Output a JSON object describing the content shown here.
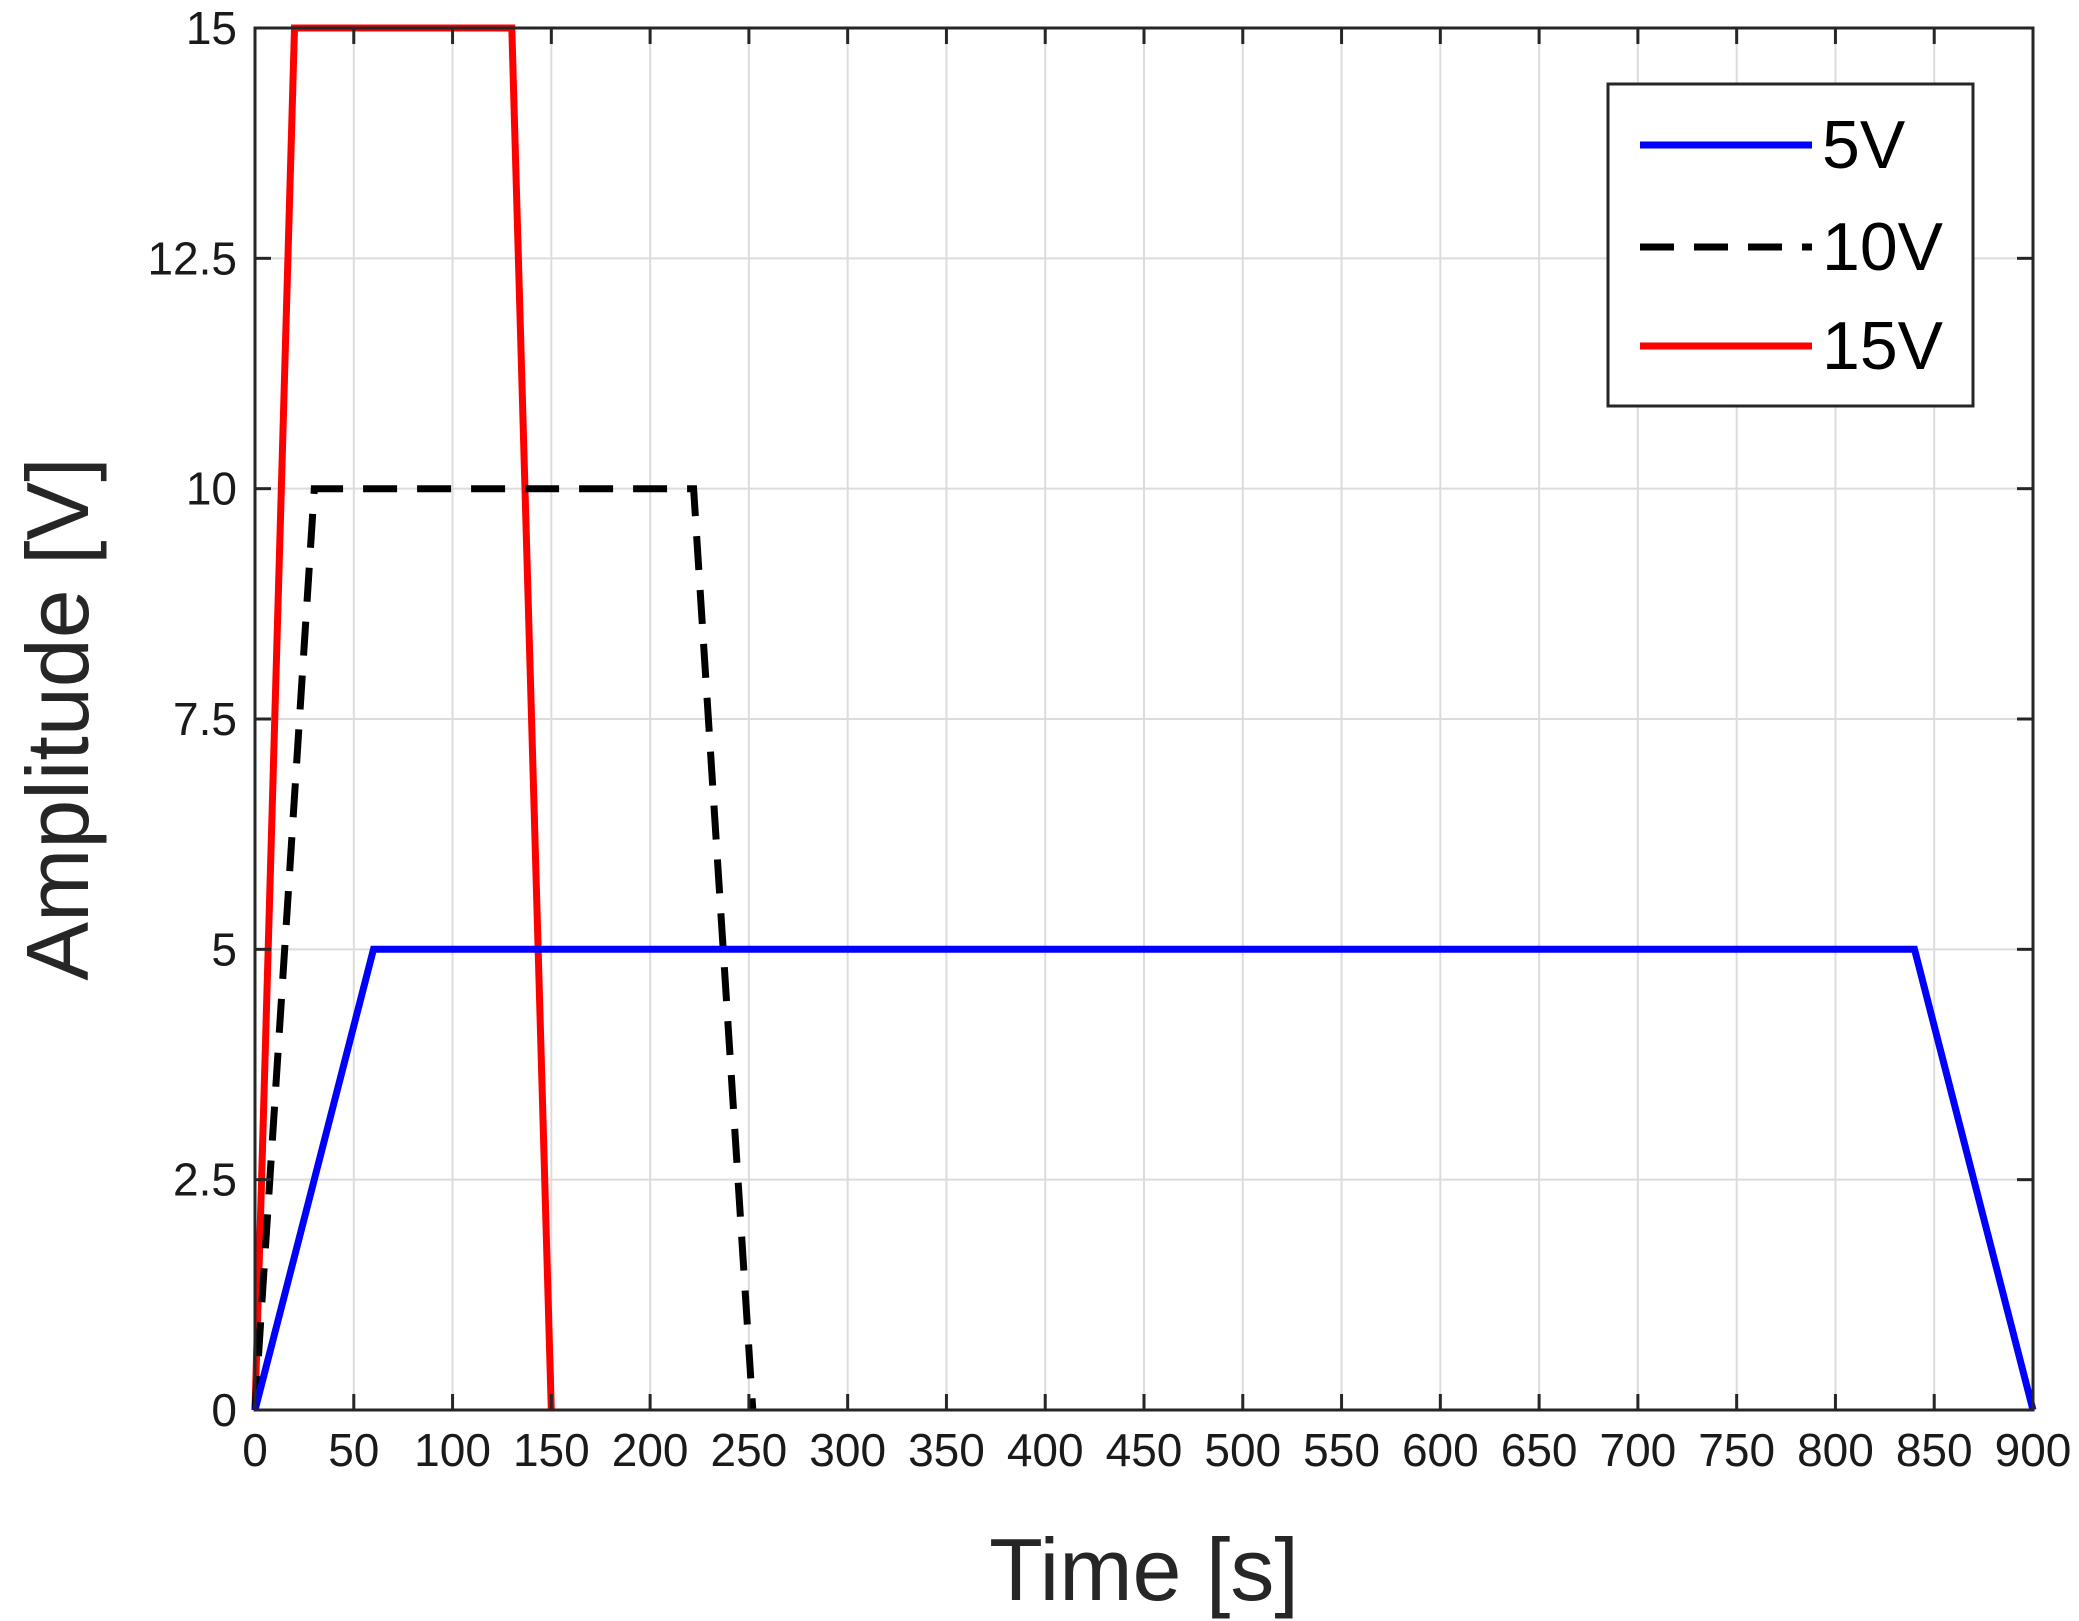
{
  "chart_data": {
    "type": "line",
    "title": "",
    "xlabel": "Time [s]",
    "ylabel": "Amplitude [V]",
    "xlim": [
      0,
      900
    ],
    "ylim": [
      0,
      15
    ],
    "xticks": [
      0,
      50,
      100,
      150,
      200,
      250,
      300,
      350,
      400,
      450,
      500,
      550,
      600,
      650,
      700,
      750,
      800,
      850,
      900
    ],
    "yticks": [
      0,
      2.5,
      5,
      7.5,
      10,
      12.5,
      15
    ],
    "xtick_labels": [
      "0",
      "50",
      "100",
      "150",
      "200",
      "250",
      "300",
      "350",
      "400",
      "450",
      "500",
      "550",
      "600",
      "650",
      "700",
      "750",
      "800",
      "850",
      "900"
    ],
    "ytick_labels": [
      "0",
      "2.5",
      "5",
      "7.5",
      "10",
      "12.5",
      "15"
    ],
    "grid": true,
    "legend": {
      "placement": "top-right"
    },
    "series": [
      {
        "name": "5V",
        "color": "#0000ff",
        "style": "solid",
        "x": [
          0,
          60,
          840,
          900
        ],
        "y": [
          0,
          5,
          5,
          0
        ]
      },
      {
        "name": "10V",
        "color": "#000000",
        "style": "dashed",
        "x": [
          0,
          30,
          222,
          252
        ],
        "y": [
          0,
          10,
          10,
          0
        ]
      },
      {
        "name": "15V",
        "color": "#ff0000",
        "style": "solid",
        "x": [
          0,
          20,
          130,
          150
        ],
        "y": [
          0,
          15,
          15,
          0
        ]
      }
    ]
  }
}
